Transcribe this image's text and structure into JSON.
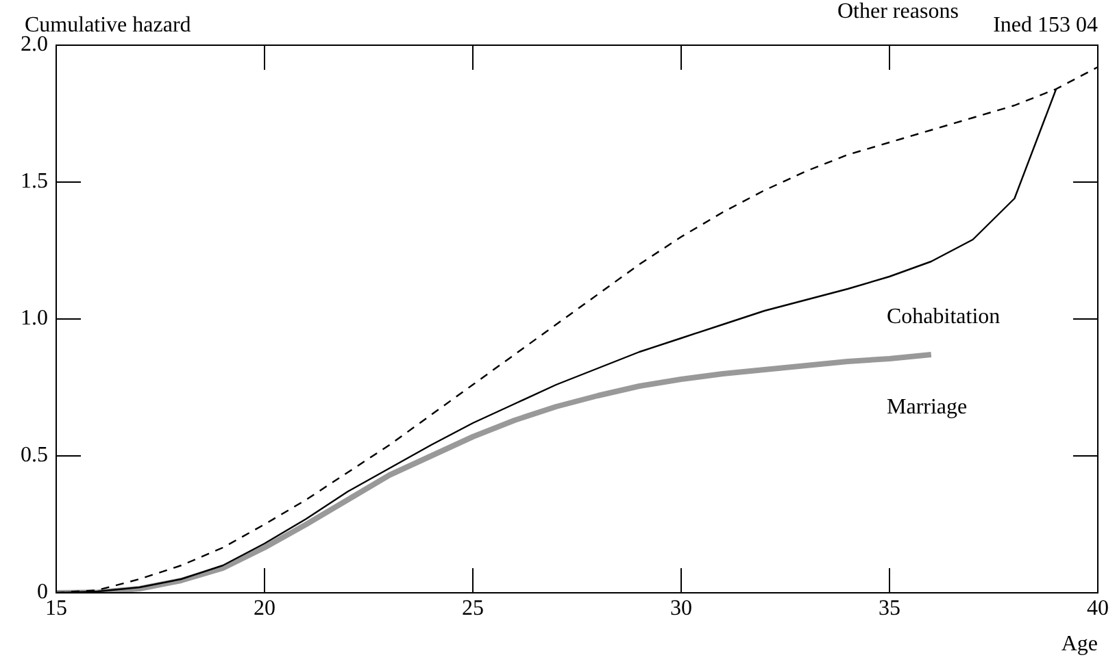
{
  "chart_data": {
    "type": "line",
    "ylabel": "Cumulative hazard",
    "xlabel": "Age",
    "annotations": [
      "Ined 153 04"
    ],
    "x": [
      15,
      16,
      17,
      18,
      19,
      20,
      21,
      22,
      23,
      24,
      25,
      26,
      27,
      28,
      29,
      30,
      31,
      32,
      33,
      34,
      35,
      36,
      37,
      38,
      39,
      40
    ],
    "xlim": [
      15,
      40
    ],
    "xticks": [
      15,
      20,
      25,
      30,
      35,
      40
    ],
    "ylim": [
      0,
      2
    ],
    "yticks": [
      0,
      {
        "value": 0.5,
        "label": "0.5"
      },
      {
        "value": 1,
        "label": "1.0"
      },
      {
        "value": 1.5,
        "label": "1.5"
      },
      {
        "value": 2,
        "label": "2.0"
      }
    ],
    "grid": false,
    "legend": false,
    "marker": "none",
    "series": [
      {
        "name": "Other reasons",
        "color": "#000000",
        "line_style": "dashed",
        "values": [
          0,
          0.01,
          0.05,
          0.1,
          0.165,
          0.25,
          0.34,
          0.44,
          0.54,
          0.65,
          0.76,
          0.87,
          0.98,
          1.09,
          1.2,
          1.3,
          1.39,
          1.47,
          1.54,
          1.6,
          1.645,
          1.69,
          1.735,
          1.78,
          1.84,
          1.92
        ]
      },
      {
        "name": "Cohabitation",
        "color": "#000000",
        "line_style": "solid",
        "values": [
          0,
          0.005,
          0.02,
          0.05,
          0.1,
          0.18,
          0.27,
          0.37,
          0.455,
          0.54,
          0.62,
          0.69,
          0.76,
          0.82,
          0.88,
          0.93,
          0.98,
          1.03,
          1.07,
          1.11,
          1.155,
          1.21,
          1.29,
          1.44,
          1.84,
          null
        ]
      },
      {
        "name": "Marriage",
        "color": "#999999",
        "line_style": "solid",
        "values": [
          0,
          0.002,
          0.015,
          0.045,
          0.09,
          0.165,
          0.25,
          0.34,
          0.43,
          0.5,
          0.57,
          0.63,
          0.68,
          0.72,
          0.755,
          0.78,
          0.8,
          0.815,
          0.83,
          0.845,
          0.855,
          0.87,
          null,
          null,
          null,
          null
        ]
      }
    ]
  }
}
